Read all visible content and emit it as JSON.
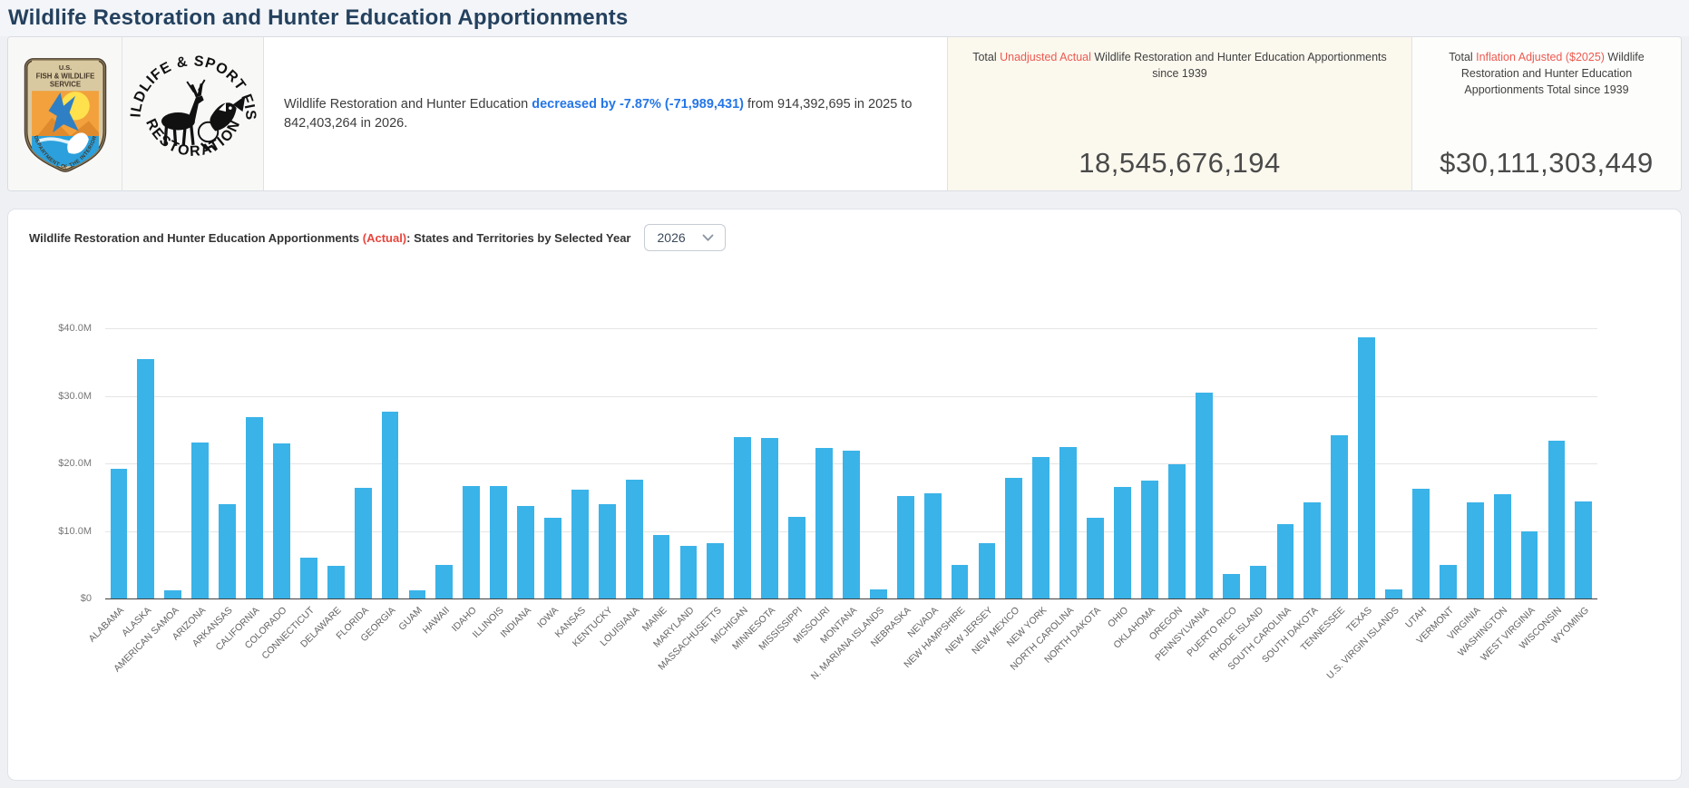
{
  "page": {
    "title": "Wildlife Restoration and Hunter Education Apportionments"
  },
  "logos": {
    "fws": {
      "name": "U.S. Fish & Wildlife Service seal",
      "line1": "U.S.",
      "line2": "FISH & WILDLIFE",
      "line3": "SERVICE",
      "bottom_text": "DEPARTMENT OF THE INTERIOR"
    },
    "wsfr": {
      "name": "Wildlife & Sport Fish Restoration emblem",
      "top_text": "WILDLIFE & SPORT FISH",
      "bottom_text": "RESTORATION"
    }
  },
  "summary": {
    "prefix": "Wildlife Restoration and Hunter Education ",
    "highlight": "decreased by -7.87% (-71,989,431)",
    "suffix": " from 914,392,695 in 2025 to 842,403,264 in 2026."
  },
  "stat_boxes": [
    {
      "caption_pre": "Total ",
      "caption_red": "Unadjusted Actual",
      "caption_post": " Wildlife Restoration and Hunter Education Apportionments since 1939",
      "value": "18,545,676,194"
    },
    {
      "caption_pre": "Total ",
      "caption_red": "Inflation Adjusted ($2025)",
      "caption_post": " Wildlife Restoration and Hunter Education Apportionments Total since 1939",
      "value": "$30,111,303,449"
    }
  ],
  "chart_header": {
    "title_pre": "Wildlife Restoration and Hunter Education Apportionments ",
    "title_red": "(Actual)",
    "title_post": ": States and Territories by Selected Year",
    "year_selected": "2026"
  },
  "colors": {
    "bar": "#3ab3e8",
    "accent_red": "#ed5a51",
    "accent_blue": "#2476e8",
    "title_navy": "#24415e"
  },
  "chart_data": {
    "type": "bar",
    "title": "Wildlife Restoration and Hunter Education Apportionments (Actual): States and Territories by Selected Year 2026",
    "unit": "USD millions",
    "bar_color": "#3ab3e8",
    "ylim": [
      0,
      40
    ],
    "grid": true,
    "yticks": [
      {
        "label": "$40.0M",
        "value": 40
      },
      {
        "label": "$30.0M",
        "value": 30
      },
      {
        "label": "$20.0M",
        "value": 20
      },
      {
        "label": "$10.0M",
        "value": 10
      },
      {
        "label": "$0",
        "value": 0
      }
    ],
    "categories": [
      "ALABAMA",
      "ALASKA",
      "AMERICAN SAMOA",
      "ARIZONA",
      "ARKANSAS",
      "CALIFORNIA",
      "COLORADO",
      "CONNECTICUT",
      "DELAWARE",
      "FLORIDA",
      "GEORGIA",
      "GUAM",
      "HAWAII",
      "IDAHO",
      "ILLINOIS",
      "INDIANA",
      "IOWA",
      "KANSAS",
      "KENTUCKY",
      "LOUISIANA",
      "MAINE",
      "MARYLAND",
      "MASSACHUSETTS",
      "MICHIGAN",
      "MINNESOTA",
      "MISSISSIPPI",
      "MISSOURI",
      "MONTANA",
      "N. MARIANA ISLANDS",
      "NEBRASKA",
      "NEVADA",
      "NEW HAMPSHIRE",
      "NEW JERSEY",
      "NEW MEXICO",
      "NEW YORK",
      "NORTH CAROLINA",
      "NORTH DAKOTA",
      "OHIO",
      "OKLAHOMA",
      "OREGON",
      "PENNSYLVANIA",
      "PUERTO RICO",
      "RHODE ISLAND",
      "SOUTH CAROLINA",
      "SOUTH DAKOTA",
      "TENNESSEE",
      "TEXAS",
      "U.S. VIRGIN ISLANDS",
      "UTAH",
      "VERMONT",
      "VIRGINIA",
      "WASHINGTON",
      "WEST VIRGINIA",
      "WISCONSIN",
      "WYOMING"
    ],
    "values": [
      19.2,
      35.5,
      1.2,
      23.1,
      14.0,
      26.8,
      23.0,
      6.0,
      4.9,
      16.4,
      27.6,
      1.2,
      5.0,
      16.6,
      16.6,
      13.7,
      12.0,
      16.1,
      13.9,
      17.6,
      9.4,
      7.8,
      8.2,
      23.9,
      23.8,
      12.1,
      22.3,
      21.9,
      1.4,
      15.2,
      15.6,
      5.0,
      8.2,
      17.8,
      20.9,
      22.4,
      12.0,
      16.5,
      17.5,
      19.9,
      30.5,
      3.6,
      4.9,
      11.0,
      14.2,
      24.2,
      38.6,
      1.4,
      16.3,
      5.0,
      14.2,
      15.4,
      9.9,
      23.4,
      14.4
    ]
  }
}
